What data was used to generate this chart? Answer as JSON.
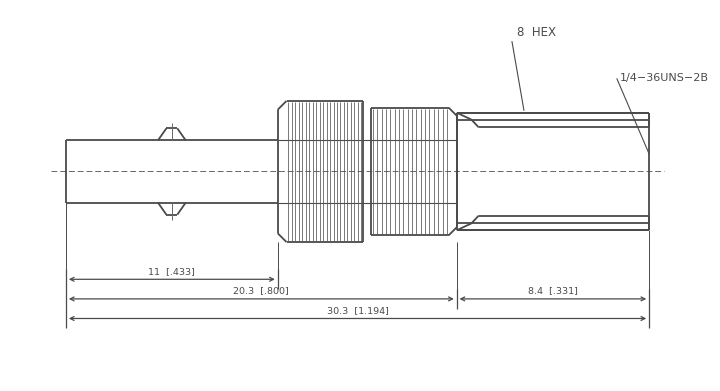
{
  "bg_color": "#ffffff",
  "line_color": "#4a4a4a",
  "lw": 1.3,
  "fig_width": 7.2,
  "fig_height": 3.91,
  "annotations": {
    "hex_label": "8  HEX",
    "thread_label": "1/4−36UNS−2B",
    "dim1_label": "11  [.433]",
    "dim2_label": "20.3  [.800]",
    "dim3_label": "8.4  [.331]",
    "dim4_label": "30.3  [1.194]"
  }
}
